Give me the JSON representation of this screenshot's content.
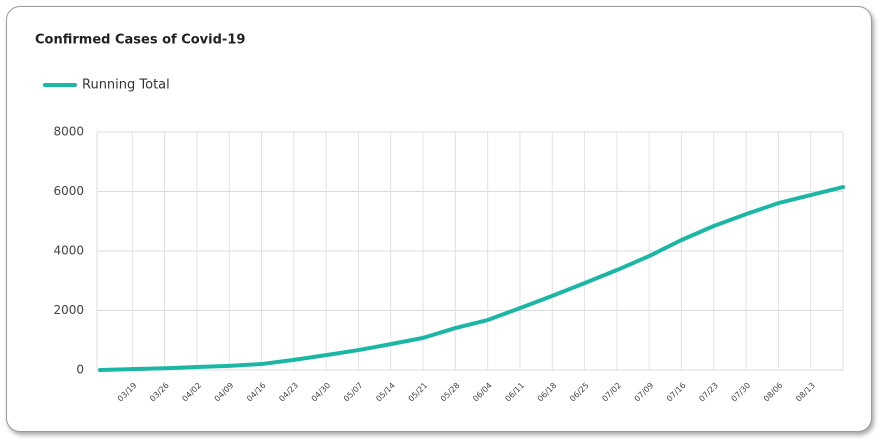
{
  "chart_data": {
    "type": "line",
    "title": "Confirmed Cases of Covid-19",
    "categories": [
      null,
      "03/19",
      "03/26",
      "04/02",
      "04/09",
      "04/16",
      "04/23",
      "04/30",
      "05/07",
      "05/14",
      "05/21",
      "05/28",
      "06/04",
      "06/11",
      "06/18",
      "06/25",
      "07/02",
      "07/09",
      "07/16",
      "07/23",
      "07/30",
      "08/06",
      "08/13",
      null
    ],
    "series": [
      {
        "name": "Running Total",
        "color": "#1bb7a4",
        "values": [
          0,
          30,
          60,
          100,
          140,
          200,
          340,
          500,
          670,
          870,
          1080,
          1410,
          1680,
          2080,
          2490,
          2920,
          3360,
          3830,
          4370,
          4840,
          5240,
          5610,
          5880,
          6150
        ]
      }
    ],
    "ylim": [
      0,
      8000
    ],
    "yticks": [
      0,
      2000,
      4000,
      6000,
      8000
    ],
    "grid": true,
    "legend": "top-left"
  }
}
